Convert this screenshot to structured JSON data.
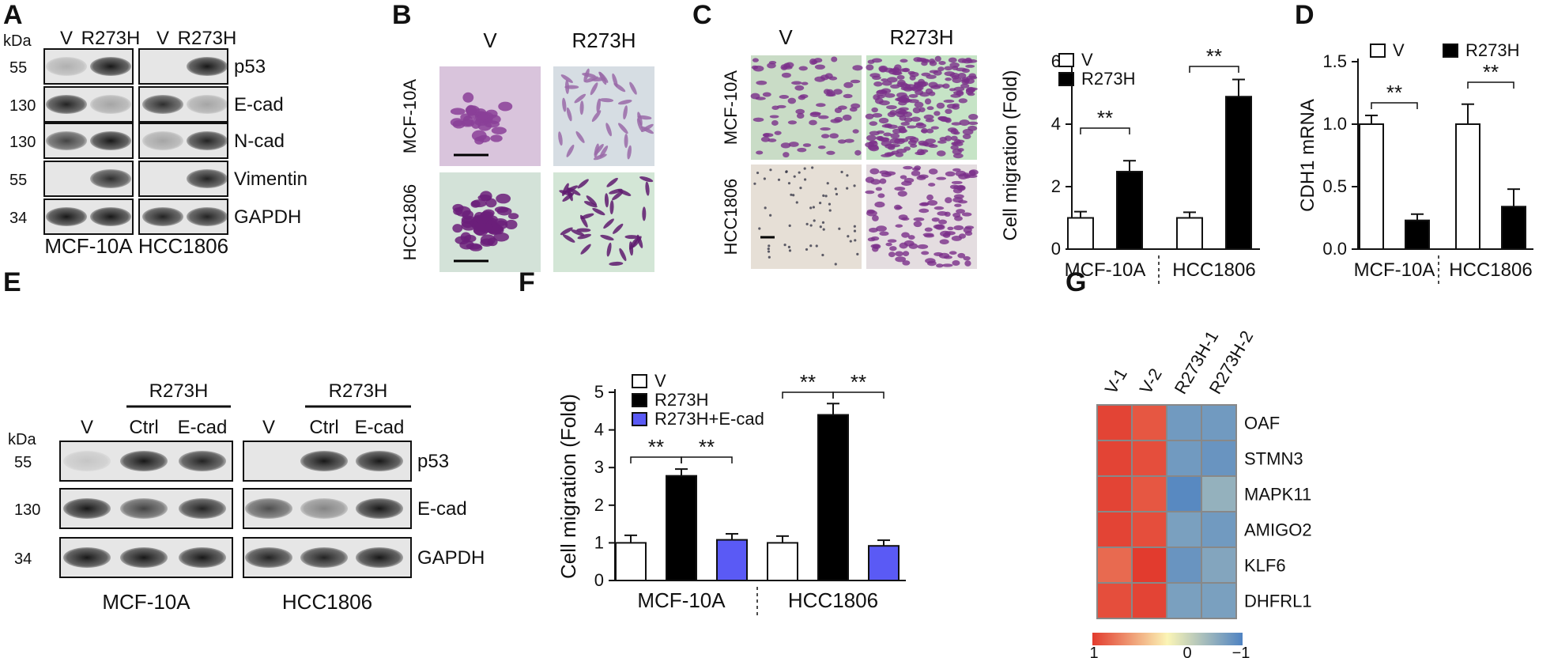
{
  "panels": {
    "A": {
      "letter": "A",
      "kda": "kDa",
      "groups": [
        {
          "name": "MCF-10A",
          "lanes": [
            "V",
            "R273H"
          ]
        },
        {
          "name": "HCC1806",
          "lanes": [
            "V",
            "R273H"
          ]
        }
      ],
      "rows": [
        {
          "protein": "p53",
          "mw": "55"
        },
        {
          "protein": "E-cad",
          "mw": "130"
        },
        {
          "protein": "N-cad",
          "mw": "130"
        },
        {
          "protein": "Vimentin",
          "mw": "55"
        },
        {
          "protein": "GAPDH",
          "mw": "34"
        }
      ],
      "band_intensity": [
        [
          [
            0.25,
            0.95
          ],
          [
            0.0,
            0.95
          ]
        ],
        [
          [
            0.9,
            0.3
          ],
          [
            0.85,
            0.3
          ]
        ],
        [
          [
            0.75,
            0.95
          ],
          [
            0.3,
            0.9
          ]
        ],
        [
          [
            0.0,
            0.85
          ],
          [
            0.0,
            0.9
          ]
        ],
        [
          [
            0.95,
            0.95
          ],
          [
            0.9,
            0.9
          ]
        ]
      ]
    },
    "B": {
      "letter": "B",
      "columns": [
        "V",
        "R273H"
      ],
      "rows": [
        "MCF-10A",
        "HCC1806"
      ]
    },
    "C": {
      "letter": "C",
      "columns": [
        "V",
        "R273H"
      ],
      "rows": [
        "MCF-10A",
        "HCC1806"
      ]
    },
    "D": {
      "letter": "D"
    },
    "E": {
      "letter": "E",
      "kda": "kDa",
      "group_header": "R273H",
      "lanes": [
        "V",
        "Ctrl",
        "E-cad"
      ],
      "groups": [
        "MCF-10A",
        "HCC1806"
      ],
      "rows": [
        {
          "protein": "p53",
          "mw": "55"
        },
        {
          "protein": "E-cad",
          "mw": "130"
        },
        {
          "protein": "GAPDH",
          "mw": "34"
        }
      ],
      "band_intensity": [
        [
          [
            0.15,
            0.95,
            0.9
          ],
          [
            0.0,
            0.95,
            0.95
          ]
        ],
        [
          [
            0.95,
            0.75,
            0.9
          ],
          [
            0.7,
            0.45,
            0.95
          ]
        ],
        [
          [
            0.95,
            0.95,
            0.95
          ],
          [
            0.9,
            0.9,
            0.95
          ]
        ]
      ]
    },
    "F": {
      "letter": "F"
    },
    "G": {
      "letter": "G"
    }
  },
  "chart_data": [
    {
      "panel": "C",
      "type": "bar",
      "categories": [
        "MCF-10A",
        "HCC1806"
      ],
      "series": [
        {
          "name": "V",
          "values": [
            1.0,
            1.0
          ],
          "errors": [
            0.2,
            0.18
          ],
          "color": "#ffffff"
        },
        {
          "name": "R273H",
          "values": [
            2.48,
            4.88
          ],
          "errors": [
            0.35,
            0.55
          ],
          "color": "#000000"
        }
      ],
      "xlabel": "",
      "ylabel": "Cell migration (Fold)",
      "ylim": [
        0,
        6
      ],
      "yticks": [
        0,
        2,
        4,
        6
      ],
      "significance": [
        {
          "category": "MCF-10A",
          "label": "**"
        },
        {
          "category": "HCC1806",
          "label": "**"
        }
      ],
      "legend": "top-left",
      "grid": false
    },
    {
      "panel": "D",
      "type": "bar",
      "categories": [
        "MCF-10A",
        "HCC1806"
      ],
      "series": [
        {
          "name": "V",
          "values": [
            1.0,
            1.0
          ],
          "errors": [
            0.07,
            0.16
          ],
          "color": "#ffffff"
        },
        {
          "name": "R273H",
          "values": [
            0.23,
            0.34
          ],
          "errors": [
            0.05,
            0.14
          ],
          "color": "#000000"
        }
      ],
      "xlabel": "",
      "ylabel": "CDH1 mRNA",
      "ylim": [
        0,
        1.5
      ],
      "yticks": [
        0.0,
        0.5,
        1.0,
        1.5
      ],
      "significance": [
        {
          "category": "MCF-10A",
          "label": "**"
        },
        {
          "category": "HCC1806",
          "label": "**"
        }
      ],
      "legend": "top",
      "grid": false
    },
    {
      "panel": "F",
      "type": "bar",
      "categories": [
        "MCF-10A",
        "HCC1806"
      ],
      "series": [
        {
          "name": "V",
          "values": [
            1.0,
            1.0
          ],
          "errors": [
            0.2,
            0.18
          ],
          "color": "#ffffff"
        },
        {
          "name": "R273H",
          "values": [
            2.78,
            4.4
          ],
          "errors": [
            0.18,
            0.3
          ],
          "color": "#000000"
        },
        {
          "name": "R273H+E-cad",
          "values": [
            1.08,
            0.92
          ],
          "errors": [
            0.16,
            0.15
          ],
          "color": "#5a5af5"
        }
      ],
      "xlabel": "",
      "ylabel": "Cell migration (Fold)",
      "ylim": [
        0,
        5
      ],
      "yticks": [
        0,
        1,
        2,
        3,
        4,
        5
      ],
      "significance": [
        {
          "category": "MCF-10A",
          "pair": [
            "V",
            "R273H"
          ],
          "label": "**"
        },
        {
          "category": "MCF-10A",
          "pair": [
            "R273H",
            "R273H+E-cad"
          ],
          "label": "**"
        },
        {
          "category": "HCC1806",
          "pair": [
            "V",
            "R273H"
          ],
          "label": "**"
        },
        {
          "category": "HCC1806",
          "pair": [
            "R273H",
            "R273H+E-cad"
          ],
          "label": "**"
        }
      ],
      "legend": "top-left",
      "grid": false
    },
    {
      "panel": "G",
      "type": "heatmap",
      "columns": [
        "V-1",
        "V-2",
        "R273H-1",
        "R273H-2"
      ],
      "rows": [
        "OAF",
        "STMN3",
        "MAPK11",
        "AMIGO2",
        "KLF6",
        "DHFRL1"
      ],
      "values": [
        [
          0.95,
          0.85,
          -0.8,
          -0.8
        ],
        [
          0.95,
          0.9,
          -0.8,
          -0.85
        ],
        [
          0.95,
          0.85,
          -0.95,
          -0.6
        ],
        [
          0.95,
          0.9,
          -0.75,
          -0.8
        ],
        [
          0.75,
          1.0,
          -0.85,
          -0.7
        ],
        [
          0.9,
          0.95,
          -0.75,
          -0.75
        ]
      ],
      "colorbar": {
        "ticks": [
          "1",
          "0",
          "−1"
        ],
        "colors": [
          "#e23b2e",
          "#fbf5b6",
          "#4f83c2"
        ]
      }
    }
  ]
}
